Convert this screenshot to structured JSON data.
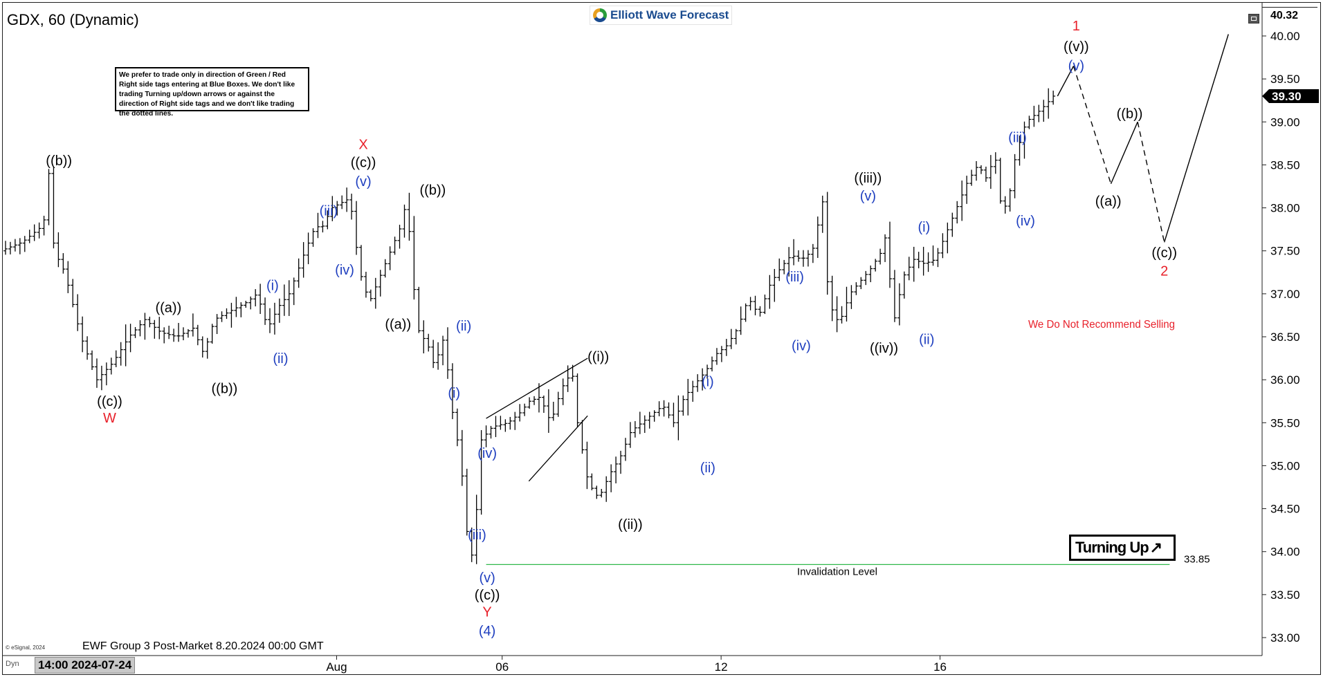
{
  "header": {
    "symbol_title": "GDX, 60 (Dynamic)",
    "logo_text": "Elliott Wave Forecast",
    "disclaimer": "We prefer to trade only in direction of Green / Red Right side tags entering at Blue Boxes. We don't like trading Turning up/down arrows or against the direction of Right side tags and we don't like trading the dotted lines."
  },
  "footer": {
    "title": "EWF Group 3 Post-Market 8.20.2024 00:00 GMT",
    "esignal": "© eSignal, 2024",
    "dyn_label": "Dyn",
    "cursor_time": "14:00 2024-07-24"
  },
  "overlay": {
    "turning_up_label": "Turning Up",
    "turning_up_arrow": "↗",
    "recommendation": "We Do Not Recommend Selling",
    "invalidation_label": "Invalidation Level"
  },
  "colors": {
    "blue": "#1f3fbf",
    "red": "#e8202a",
    "black": "#000000",
    "green": "#2fb84a"
  },
  "chart_data": {
    "type": "ohlc",
    "interval": "60",
    "ylim": [
      32.85,
      40.4
    ],
    "yticks": [
      "33.00",
      "33.50",
      "34.00",
      "34.50",
      "35.00",
      "35.50",
      "36.00",
      "36.50",
      "37.00",
      "37.50",
      "38.00",
      "38.50",
      "39.00",
      "39.50",
      "40.00"
    ],
    "y_high_label": "40.32",
    "last_price": "39.30",
    "last_price_value": 39.3,
    "x_ticks": [
      {
        "label": "Aug",
        "t": 62
      },
      {
        "label": "06",
        "t": 93
      },
      {
        "label": "12",
        "t": 134
      },
      {
        "label": "16",
        "t": 175
      }
    ],
    "xlim": [
      0,
      230
    ],
    "invalidation": {
      "value": 33.85,
      "label": "33.85",
      "t_start": 90,
      "t_end": 218
    },
    "path": [
      [
        0,
        37.5
      ],
      [
        4,
        37.6
      ],
      [
        8,
        37.8
      ],
      [
        9,
        38.4
      ],
      [
        10,
        37.5
      ],
      [
        12,
        37.25
      ],
      [
        15,
        36.5
      ],
      [
        18,
        36.0
      ],
      [
        21,
        36.2
      ],
      [
        24,
        36.5
      ],
      [
        27,
        36.7
      ],
      [
        30,
        36.55
      ],
      [
        33,
        36.5
      ],
      [
        36,
        36.6
      ],
      [
        38,
        36.3
      ],
      [
        40,
        36.7
      ],
      [
        43,
        36.8
      ],
      [
        46,
        36.9
      ],
      [
        48,
        37.0
      ],
      [
        50,
        36.6
      ],
      [
        52,
        36.85
      ],
      [
        54,
        37.0
      ],
      [
        57,
        37.5
      ],
      [
        59,
        37.8
      ],
      [
        60,
        37.75
      ],
      [
        62,
        38.0
      ],
      [
        65,
        38.1
      ],
      [
        66,
        37.9
      ],
      [
        67,
        37.3
      ],
      [
        69,
        36.9
      ],
      [
        71,
        37.2
      ],
      [
        73,
        37.5
      ],
      [
        75,
        37.8
      ],
      [
        76,
        38.1
      ],
      [
        78,
        36.6
      ],
      [
        80,
        36.4
      ],
      [
        81,
        36.2
      ],
      [
        82,
        36.3
      ],
      [
        83,
        36.5
      ],
      [
        85,
        35.4
      ],
      [
        86,
        35.2
      ],
      [
        87,
        34.4
      ],
      [
        88,
        33.85
      ],
      [
        89,
        34.4
      ],
      [
        90,
        35.3
      ],
      [
        92,
        35.45
      ],
      [
        95,
        35.5
      ],
      [
        97,
        35.6
      ],
      [
        99,
        35.75
      ],
      [
        101,
        35.8
      ],
      [
        103,
        35.5
      ],
      [
        105,
        35.9
      ],
      [
        107,
        36.1
      ],
      [
        108,
        35.5
      ],
      [
        110,
        34.8
      ],
      [
        112,
        34.62
      ],
      [
        114,
        34.9
      ],
      [
        116,
        35.1
      ],
      [
        118,
        35.4
      ],
      [
        120,
        35.5
      ],
      [
        122,
        35.6
      ],
      [
        124,
        35.7
      ],
      [
        126,
        35.5
      ],
      [
        128,
        35.8
      ],
      [
        130,
        35.95
      ],
      [
        132,
        36.1
      ],
      [
        134,
        36.3
      ],
      [
        136,
        36.4
      ],
      [
        138,
        36.6
      ],
      [
        140,
        36.95
      ],
      [
        142,
        36.75
      ],
      [
        144,
        37.1
      ],
      [
        146,
        37.3
      ],
      [
        148,
        37.45
      ],
      [
        150,
        37.4
      ],
      [
        152,
        37.5
      ],
      [
        154,
        38.1
      ],
      [
        155,
        36.9
      ],
      [
        157,
        36.65
      ],
      [
        159,
        37.0
      ],
      [
        161,
        37.15
      ],
      [
        163,
        37.3
      ],
      [
        165,
        37.5
      ],
      [
        166,
        37.75
      ],
      [
        167,
        36.6
      ],
      [
        169,
        37.2
      ],
      [
        171,
        37.4
      ],
      [
        173,
        37.35
      ],
      [
        175,
        37.4
      ],
      [
        177,
        37.7
      ],
      [
        179,
        38.0
      ],
      [
        181,
        38.3
      ],
      [
        183,
        38.5
      ],
      [
        185,
        38.3
      ],
      [
        186,
        38.75
      ],
      [
        187,
        38.1
      ],
      [
        188,
        38.0
      ],
      [
        189,
        38.2
      ],
      [
        190,
        38.6
      ],
      [
        192,
        39.0
      ],
      [
        194,
        39.1
      ],
      [
        196,
        39.22
      ],
      [
        197,
        39.3
      ]
    ],
    "projection": [
      {
        "t1": 197,
        "y1": 39.3,
        "t2": 200,
        "y2": 39.65,
        "style": "solid"
      },
      {
        "t1": 200,
        "y1": 39.65,
        "t2": 207,
        "y2": 38.28,
        "style": "dashed"
      },
      {
        "t1": 207,
        "y1": 38.28,
        "t2": 212,
        "y2": 39.0,
        "style": "solid"
      },
      {
        "t1": 212,
        "y1": 39.0,
        "t2": 217,
        "y2": 37.6,
        "style": "dashed"
      },
      {
        "t1": 217,
        "y1": 37.6,
        "t2": 229,
        "y2": 40.02,
        "style": "solid"
      }
    ],
    "channel": [
      {
        "t1": 90,
        "y1": 35.55,
        "t2": 109,
        "y2": 36.25
      },
      {
        "t1": 98,
        "y1": 34.82,
        "t2": 109,
        "y2": 35.58
      }
    ],
    "labels": [
      {
        "text": "((b))",
        "t": 10,
        "y": 38.55,
        "color": "black"
      },
      {
        "text": "((c))",
        "t": 19.5,
        "y": 35.75,
        "color": "black"
      },
      {
        "text": "W",
        "t": 19.5,
        "y": 35.56,
        "color": "red"
      },
      {
        "text": "((a))",
        "t": 30.5,
        "y": 36.84,
        "color": "black"
      },
      {
        "text": "((b))",
        "t": 41,
        "y": 35.9,
        "color": "black"
      },
      {
        "text": "(i)",
        "t": 50,
        "y": 37.1,
        "color": "blue"
      },
      {
        "text": "(ii)",
        "t": 51.5,
        "y": 36.25,
        "color": "blue"
      },
      {
        "text": "(iii)",
        "t": 60.5,
        "y": 37.97,
        "color": "blue"
      },
      {
        "text": "(iv)",
        "t": 63.5,
        "y": 37.28,
        "color": "blue"
      },
      {
        "text": "X",
        "t": 67,
        "y": 38.74,
        "color": "red"
      },
      {
        "text": "((c))",
        "t": 67,
        "y": 38.53,
        "color": "black"
      },
      {
        "text": "(v)",
        "t": 67,
        "y": 38.31,
        "color": "blue"
      },
      {
        "text": "((a))",
        "t": 73.5,
        "y": 36.65,
        "color": "black"
      },
      {
        "text": "((b))",
        "t": 80,
        "y": 38.21,
        "color": "black"
      },
      {
        "text": "(ii)",
        "t": 85.8,
        "y": 36.63,
        "color": "blue"
      },
      {
        "text": "(i)",
        "t": 84,
        "y": 35.85,
        "color": "blue"
      },
      {
        "text": "(iv)",
        "t": 90.2,
        "y": 35.15,
        "color": "blue"
      },
      {
        "text": "(iii)",
        "t": 88.3,
        "y": 34.2,
        "color": "blue"
      },
      {
        "text": "(v)",
        "t": 90.2,
        "y": 33.7,
        "color": "blue"
      },
      {
        "text": "((c))",
        "t": 90.2,
        "y": 33.5,
        "color": "black"
      },
      {
        "text": "Y",
        "t": 90.2,
        "y": 33.3,
        "color": "red"
      },
      {
        "text": "(4)",
        "t": 90.2,
        "y": 33.08,
        "color": "blue"
      },
      {
        "text": "((i))",
        "t": 111,
        "y": 36.27,
        "color": "black"
      },
      {
        "text": "((ii))",
        "t": 117,
        "y": 34.32,
        "color": "black"
      },
      {
        "text": "(i)",
        "t": 131.5,
        "y": 35.98,
        "color": "blue"
      },
      {
        "text": "(ii)",
        "t": 131.5,
        "y": 34.98,
        "color": "blue"
      },
      {
        "text": "(iii)",
        "t": 147.8,
        "y": 37.2,
        "color": "blue"
      },
      {
        "text": "(iv)",
        "t": 149,
        "y": 36.4,
        "color": "blue"
      },
      {
        "text": "((iii))",
        "t": 161.5,
        "y": 38.35,
        "color": "black"
      },
      {
        "text": "(v)",
        "t": 161.5,
        "y": 38.14,
        "color": "blue"
      },
      {
        "text": "((iv))",
        "t": 164.5,
        "y": 36.37,
        "color": "black"
      },
      {
        "text": "(i)",
        "t": 172,
        "y": 37.78,
        "color": "blue"
      },
      {
        "text": "(ii)",
        "t": 172.5,
        "y": 36.47,
        "color": "blue"
      },
      {
        "text": "(iii)",
        "t": 189.5,
        "y": 38.82,
        "color": "blue"
      },
      {
        "text": "(iv)",
        "t": 191,
        "y": 37.85,
        "color": "blue"
      },
      {
        "text": "1",
        "t": 200.5,
        "y": 40.12,
        "color": "red"
      },
      {
        "text": "((v))",
        "t": 200.5,
        "y": 39.88,
        "color": "black"
      },
      {
        "text": "(v)",
        "t": 200.5,
        "y": 39.66,
        "color": "blue"
      },
      {
        "text": "((a))",
        "t": 206.5,
        "y": 38.08,
        "color": "black"
      },
      {
        "text": "((b))",
        "t": 210.5,
        "y": 39.1,
        "color": "black"
      },
      {
        "text": "((c))",
        "t": 217,
        "y": 37.48,
        "color": "black"
      },
      {
        "text": "2",
        "t": 217,
        "y": 37.27,
        "color": "red"
      }
    ]
  }
}
